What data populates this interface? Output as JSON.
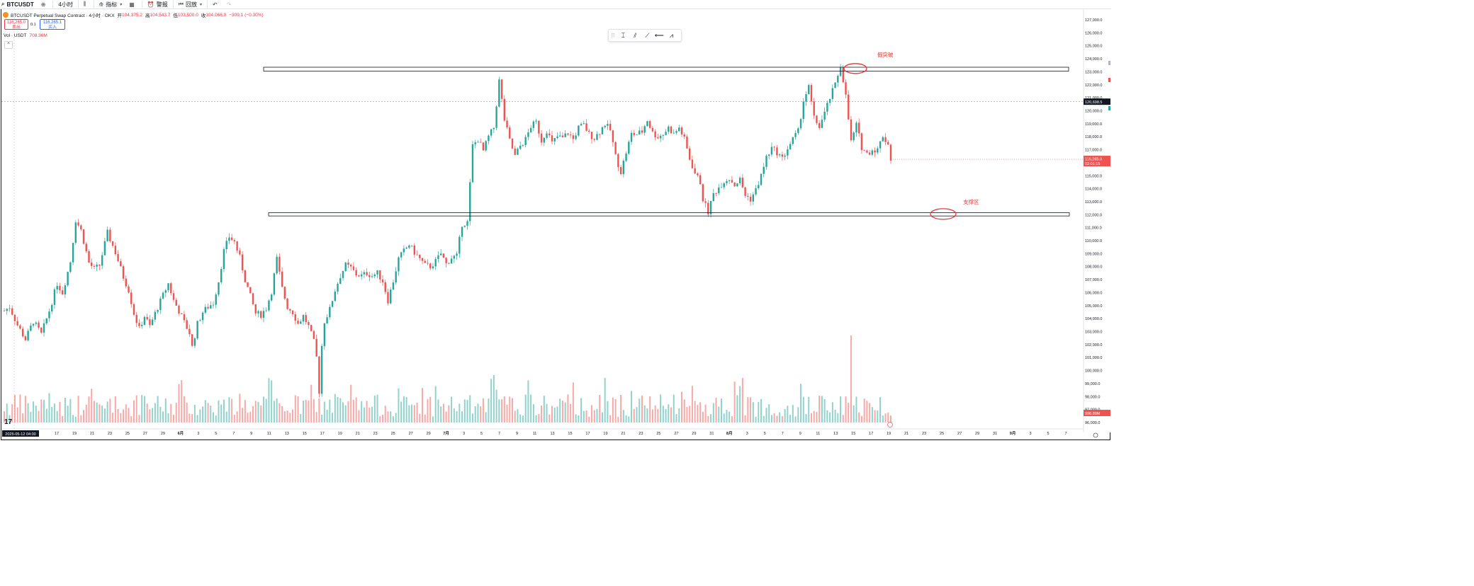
{
  "toolbar": {
    "symbol": "BTCUSDT",
    "interval": "4小时",
    "indicators": "指标",
    "alert": "警报",
    "replay": "回放"
  },
  "legend": {
    "title": "BTCUSDT Perpetual Swap Contract · 4小时 · OKX",
    "open_label": "开",
    "open": "104,375.2",
    "high_label": "高",
    "high": "104,543.7",
    "low_label": "低",
    "low": "103,500.0",
    "close_label": "收",
    "close": "104,066.0",
    "change": "−309.1 (−0.30%)"
  },
  "trade": {
    "sell_price": "116,265.0",
    "sell_label": "卖出",
    "spread": "0.1",
    "buy_price": "116,265.1",
    "buy_label": "买入"
  },
  "volume_legend": {
    "label": "Vol · USDT",
    "value": "708.36M"
  },
  "colors": {
    "up": "#26a69a",
    "down": "#ef5350",
    "annotation": "#e53935",
    "accent": "#2962ff",
    "brand": "#f7931a"
  },
  "drawing_tools": [
    "cursor-icon",
    "text-icon",
    "brush-icon",
    "trend-line-icon",
    "horizontal-line-icon",
    "path-icon"
  ],
  "chart_data": {
    "type": "candlestick",
    "title": "BTCUSDT Perpetual Swap Contract · 4小时 · OKX",
    "ylim": [
      96000,
      127000
    ],
    "y_ticks": [
      96000,
      97000,
      98000,
      99000,
      100000,
      101000,
      102000,
      103000,
      104000,
      105000,
      106000,
      107000,
      108000,
      109000,
      110000,
      111000,
      112000,
      113000,
      114000,
      115000,
      116000,
      117000,
      118000,
      119000,
      120000,
      121000,
      122000,
      123000,
      124000,
      125000,
      126000,
      127000
    ],
    "y_tick_labels": [
      "96,000.0",
      "97,000.0",
      "98,000.0",
      "99,000.0",
      "100,000.0",
      "101,000.0",
      "102,000.0",
      "103,000.0",
      "104,000.0",
      "105,000.0",
      "106,000.0",
      "107,000.0",
      "108,000.0",
      "109,000.0",
      "110,000.0",
      "111,000.0",
      "112,000.0",
      "113,000.0",
      "114,000.0",
      "115,000.0",
      "116,000.0",
      "117,000.0",
      "118,000.0",
      "119,000.0",
      "120,000.0",
      "121,000.0",
      "122,000.0",
      "123,000.0",
      "124,000.0",
      "125,000.0",
      "126,000.0",
      "127,000.0"
    ],
    "x_tick_labels": [
      "17",
      "19",
      "21",
      "23",
      "25",
      "27",
      "29",
      "6月",
      "3",
      "5",
      "7",
      "9",
      "11",
      "13",
      "15",
      "17",
      "19",
      "21",
      "23",
      "25",
      "27",
      "29",
      "7月",
      "3",
      "5",
      "7",
      "9",
      "11",
      "13",
      "15",
      "17",
      "19",
      "21",
      "23",
      "25",
      "27",
      "29",
      "31",
      "8月",
      "3",
      "5",
      "7",
      "9",
      "11",
      "13",
      "15",
      "17",
      "19",
      "21",
      "23",
      "25",
      "27",
      "29",
      "31",
      "9月",
      "3",
      "5",
      "7"
    ],
    "x_start_label": "2025-05-12 04:00",
    "crosshair_price": "120,698.5",
    "last_price": "116,265.0",
    "countdown": "02:01:15",
    "volume_value": "996.89M",
    "price_path": [
      [
        0,
        104600
      ],
      [
        2,
        104900
      ],
      [
        5,
        103500
      ],
      [
        8,
        102400
      ],
      [
        11,
        103800
      ],
      [
        14,
        102800
      ],
      [
        17,
        104600
      ],
      [
        20,
        106700
      ],
      [
        22,
        106000
      ],
      [
        25,
        108400
      ],
      [
        27,
        111600
      ],
      [
        29,
        110800
      ],
      [
        32,
        108300
      ],
      [
        34,
        107800
      ],
      [
        36,
        108100
      ],
      [
        39,
        110600
      ],
      [
        42,
        109100
      ],
      [
        45,
        107200
      ],
      [
        47,
        106200
      ],
      [
        49,
        104400
      ],
      [
        51,
        103200
      ],
      [
        53,
        104200
      ],
      [
        55,
        103400
      ],
      [
        57,
        104400
      ],
      [
        60,
        105800
      ],
      [
        62,
        106700
      ],
      [
        64,
        105400
      ],
      [
        66,
        104600
      ],
      [
        68,
        103700
      ],
      [
        70,
        102900
      ],
      [
        71,
        101800
      ],
      [
        73,
        103600
      ],
      [
        75,
        104500
      ],
      [
        77,
        104900
      ],
      [
        79,
        105200
      ],
      [
        81,
        106900
      ],
      [
        83,
        109200
      ],
      [
        85,
        110300
      ],
      [
        87,
        109900
      ],
      [
        89,
        108700
      ],
      [
        91,
        107000
      ],
      [
        93,
        105700
      ],
      [
        95,
        104400
      ],
      [
        97,
        104300
      ],
      [
        99,
        104800
      ],
      [
        101,
        106100
      ],
      [
        103,
        108600
      ],
      [
        105,
        106300
      ],
      [
        107,
        104900
      ],
      [
        109,
        104500
      ],
      [
        111,
        103600
      ],
      [
        113,
        104200
      ],
      [
        115,
        103400
      ],
      [
        117,
        102200
      ],
      [
        118,
        101000
      ],
      [
        119,
        98400
      ],
      [
        120,
        101900
      ],
      [
        121,
        103800
      ],
      [
        123,
        104700
      ],
      [
        125,
        106200
      ],
      [
        127,
        107300
      ],
      [
        129,
        108100
      ],
      [
        131,
        107900
      ],
      [
        133,
        107400
      ],
      [
        135,
        107300
      ],
      [
        137,
        107500
      ],
      [
        139,
        107300
      ],
      [
        141,
        107500
      ],
      [
        143,
        106900
      ],
      [
        145,
        105400
      ],
      [
        147,
        106900
      ],
      [
        149,
        108600
      ],
      [
        151,
        109200
      ],
      [
        153,
        109700
      ],
      [
        155,
        109100
      ],
      [
        157,
        108600
      ],
      [
        159,
        108100
      ],
      [
        161,
        108000
      ],
      [
        163,
        108400
      ],
      [
        165,
        109000
      ],
      [
        167,
        108200
      ],
      [
        169,
        108700
      ],
      [
        171,
        108800
      ],
      [
        173,
        111300
      ],
      [
        175,
        111400
      ],
      [
        177,
        117300
      ],
      [
        179,
        117800
      ],
      [
        181,
        116900
      ],
      [
        183,
        118000
      ],
      [
        185,
        118700
      ],
      [
        187,
        122300
      ],
      [
        189,
        119300
      ],
      [
        191,
        117700
      ],
      [
        193,
        116500
      ],
      [
        195,
        117300
      ],
      [
        197,
        117800
      ],
      [
        199,
        118800
      ],
      [
        201,
        119100
      ],
      [
        203,
        117700
      ],
      [
        205,
        118500
      ],
      [
        207,
        117500
      ],
      [
        209,
        118000
      ],
      [
        211,
        117900
      ],
      [
        213,
        118300
      ],
      [
        215,
        117800
      ],
      [
        217,
        118700
      ],
      [
        219,
        118900
      ],
      [
        221,
        118200
      ],
      [
        223,
        117900
      ],
      [
        225,
        118400
      ],
      [
        227,
        119000
      ],
      [
        229,
        118500
      ],
      [
        231,
        116500
      ],
      [
        233,
        115300
      ],
      [
        235,
        116800
      ],
      [
        237,
        118200
      ],
      [
        239,
        118200
      ],
      [
        241,
        118400
      ],
      [
        243,
        119300
      ],
      [
        245,
        118300
      ],
      [
        247,
        118000
      ],
      [
        249,
        118200
      ],
      [
        251,
        118700
      ],
      [
        253,
        118200
      ],
      [
        255,
        118700
      ],
      [
        257,
        117800
      ],
      [
        259,
        116300
      ],
      [
        261,
        115200
      ],
      [
        263,
        114500
      ],
      [
        264,
        113200
      ],
      [
        266,
        112200
      ],
      [
        268,
        113600
      ],
      [
        270,
        114100
      ],
      [
        272,
        114600
      ],
      [
        274,
        114800
      ],
      [
        276,
        114300
      ],
      [
        278,
        114700
      ],
      [
        280,
        113500
      ],
      [
        282,
        113200
      ],
      [
        284,
        113900
      ],
      [
        286,
        115000
      ],
      [
        288,
        116400
      ],
      [
        290,
        117100
      ],
      [
        292,
        116800
      ],
      [
        294,
        116300
      ],
      [
        296,
        117100
      ],
      [
        298,
        117800
      ],
      [
        300,
        118400
      ],
      [
        302,
        120800
      ],
      [
        304,
        121800
      ],
      [
        306,
        119400
      ],
      [
        308,
        118800
      ],
      [
        310,
        119800
      ],
      [
        312,
        121000
      ],
      [
        314,
        122000
      ],
      [
        316,
        123500
      ],
      [
        317,
        122400
      ],
      [
        318,
        121100
      ],
      [
        320,
        117600
      ],
      [
        322,
        118900
      ],
      [
        324,
        117200
      ],
      [
        326,
        116700
      ],
      [
        328,
        117000
      ],
      [
        330,
        117000
      ],
      [
        332,
        118100
      ],
      [
        334,
        117400
      ],
      [
        335,
        116300
      ]
    ],
    "support_zone": [
      111900,
      112150
    ],
    "resistance_zone": [
      123050,
      123350
    ],
    "annotations": [
      "假突破",
      "支撑区"
    ]
  }
}
